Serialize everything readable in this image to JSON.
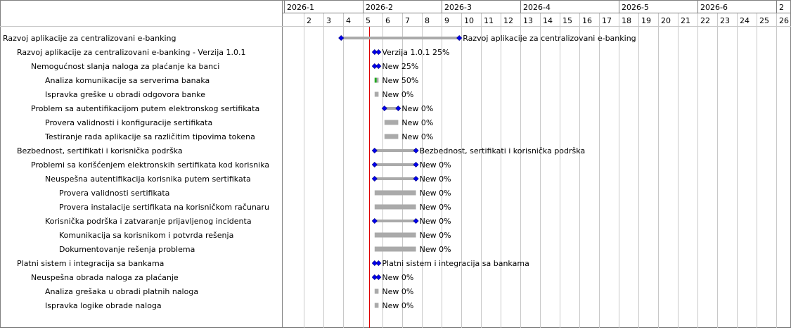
{
  "chart_data": {
    "type": "gantt",
    "timeline_unit": "week",
    "months": [
      {
        "label": "2026-1",
        "first_week": 1
      },
      {
        "label": "2026-2",
        "first_week": 5
      },
      {
        "label": "2026-3",
        "first_week": 9
      },
      {
        "label": "2026-4",
        "first_week": 13
      },
      {
        "label": "2026-5",
        "first_week": 18
      },
      {
        "label": "2026-6",
        "first_week": 22
      },
      {
        "label": "2",
        "first_week": 26
      }
    ],
    "week_ticks": [
      "2",
      "3",
      "4",
      "5",
      "6",
      "7",
      "8",
      "9",
      "10",
      "11",
      "12",
      "13",
      "14",
      "15",
      "16",
      "17",
      "18",
      "19",
      "20",
      "21",
      "22",
      "23",
      "24",
      "25",
      "26"
    ],
    "today_week": 5.33,
    "colors": {
      "grid": "#c8c8c8",
      "border": "#808080",
      "bar": "#aaaaaa",
      "progress": "#22aa22",
      "milestone": "#0000ee",
      "today_line": "#dd0000"
    },
    "tasks": [
      {
        "name": "Razvoj aplikacije za centralizovani e-banking",
        "level": 0,
        "kind": "summary",
        "start": 3.9,
        "end": 9.9,
        "progress": 0,
        "label": "Razvoj aplikacije za centralizovani e-banking"
      },
      {
        "name": "Razvoj aplikacije za centralizovani e-banking - Verzija 1.0.1",
        "level": 1,
        "kind": "summary",
        "start": 5.6,
        "end": 5.8,
        "progress": 25,
        "label": "Verzija 1.0.1 25%"
      },
      {
        "name": "Nemogućnost slanja naloga za plaćanje ka banci",
        "level": 2,
        "kind": "summary",
        "start": 5.6,
        "end": 5.8,
        "progress": 25,
        "label": "New 25%"
      },
      {
        "name": "Analiza komunikacije sa serverima banaka",
        "level": 3,
        "kind": "task",
        "start": 5.6,
        "end": 5.8,
        "progress": 50,
        "label": "New 50%"
      },
      {
        "name": "Ispravka greške u obradi odgovora banke",
        "level": 3,
        "kind": "task",
        "start": 5.6,
        "end": 5.8,
        "progress": 0,
        "label": "New 0%"
      },
      {
        "name": "Problem sa autentifikacijom putem elektronskog sertifikata",
        "level": 2,
        "kind": "summary",
        "start": 6.1,
        "end": 6.8,
        "progress": 0,
        "label": "New 0%"
      },
      {
        "name": "Provera validnosti i konfiguracije sertifikata",
        "level": 3,
        "kind": "task",
        "start": 6.1,
        "end": 6.8,
        "progress": 0,
        "label": "New 0%"
      },
      {
        "name": "Testiranje rada aplikacije sa različitim tipovima tokena",
        "level": 3,
        "kind": "task",
        "start": 6.1,
        "end": 6.8,
        "progress": 0,
        "label": "New 0%"
      },
      {
        "name": "Bezbednost, sertifikati i korisnička podrška",
        "level": 1,
        "kind": "summary",
        "start": 5.6,
        "end": 7.7,
        "progress": 0,
        "label": "Bezbednost, sertifikati i korisnička podrška"
      },
      {
        "name": "Problemi sa korišćenjem elektronskih sertifikata kod korisnika",
        "level": 2,
        "kind": "summary",
        "start": 5.6,
        "end": 7.7,
        "progress": 0,
        "label": "New 0%"
      },
      {
        "name": "Neuspešna autentifikacija korisnika putem sertifikata",
        "level": 3,
        "kind": "summary",
        "start": 5.6,
        "end": 7.7,
        "progress": 0,
        "label": "New 0%"
      },
      {
        "name": "Provera validnosti sertifikata",
        "level": 4,
        "kind": "task",
        "start": 5.6,
        "end": 7.7,
        "progress": 0,
        "label": "New 0%"
      },
      {
        "name": "Provera instalacije sertifikata na korisničkom računaru",
        "level": 4,
        "kind": "task",
        "start": 5.6,
        "end": 7.7,
        "progress": 0,
        "label": "New 0%"
      },
      {
        "name": "Korisnička podrška i zatvaranje prijavljenog incidenta",
        "level": 3,
        "kind": "summary",
        "start": 5.6,
        "end": 7.7,
        "progress": 0,
        "label": "New 0%"
      },
      {
        "name": "Komunikacija sa korisnikom i potvrda rešenja",
        "level": 4,
        "kind": "task",
        "start": 5.6,
        "end": 7.7,
        "progress": 0,
        "label": "New 0%"
      },
      {
        "name": "Dokumentovanje rešenja problema",
        "level": 4,
        "kind": "task",
        "start": 5.6,
        "end": 7.7,
        "progress": 0,
        "label": "New 0%"
      },
      {
        "name": "Platni sistem i integracija sa bankama",
        "level": 1,
        "kind": "summary",
        "start": 5.6,
        "end": 5.8,
        "progress": 0,
        "label": "Platni sistem i integracija sa bankama"
      },
      {
        "name": "Neuspešna obrada naloga za plaćanje",
        "level": 2,
        "kind": "summary",
        "start": 5.6,
        "end": 5.8,
        "progress": 0,
        "label": "New 0%"
      },
      {
        "name": "Analiza grešaka u obradi platnih naloga",
        "level": 3,
        "kind": "task",
        "start": 5.6,
        "end": 5.8,
        "progress": 0,
        "label": "New 0%"
      },
      {
        "name": "Ispravka logike obrade naloga",
        "level": 3,
        "kind": "task",
        "start": 5.6,
        "end": 5.8,
        "progress": 0,
        "label": "New 0%"
      }
    ]
  }
}
